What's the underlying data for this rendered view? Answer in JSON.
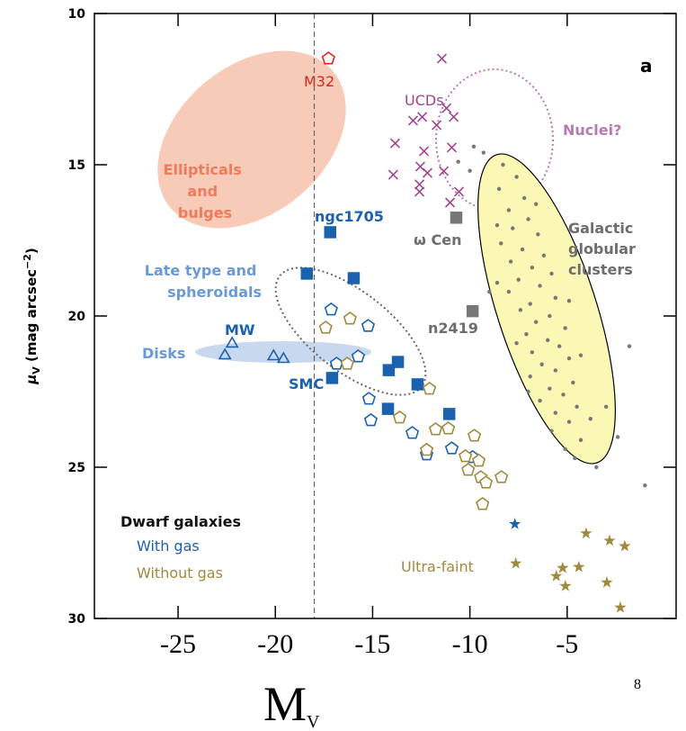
{
  "chart_data": {
    "type": "scatter",
    "xlabel": [
      "M",
      "V"
    ],
    "ylabel": [
      "μ",
      "V",
      " (mag arcsec",
      "−2",
      ")"
    ],
    "xlim": [
      -29.3,
      0.6
    ],
    "ylim": [
      10,
      30
    ],
    "y_inverted": true,
    "xticks": [
      -25,
      -20,
      -15,
      -10,
      -5
    ],
    "yticks": [
      10,
      15,
      20,
      25,
      30
    ],
    "vline": -18,
    "page_number": "8",
    "annotations": [
      "a",
      "M32",
      "UCDs",
      "Nuclei?",
      [
        "Ellipticals",
        "and",
        "bulges"
      ],
      "ngc1705",
      "ω Cen",
      [
        "Galactic",
        "globular",
        "clusters"
      ],
      [
        "Late type and",
        "spheroidals"
      ],
      "n2419",
      "MW",
      "Disks",
      "SMC",
      "Ultra-faint"
    ],
    "legend": {
      "title": "Dwarf galaxies",
      "entries": [
        {
          "name": "With gas",
          "color": "#1a62b0"
        },
        {
          "name": "Without gas",
          "color": "#a08a3e"
        }
      ]
    },
    "series": [
      {
        "marker": "dot",
        "color": "#777777",
        "x": [
          -8.3,
          -7.6,
          -8.5,
          -7.2,
          -8.0,
          -7.0,
          -7.8,
          -6.5,
          -8.4,
          -7.3,
          -6.2,
          -7.9,
          -6.8,
          -5.8,
          -7.5,
          -6.4,
          -8.0,
          -5.6,
          -6.9,
          -7.4,
          -5.9,
          -6.6,
          -5.1,
          -7.1,
          -6.0,
          -5.4,
          -6.8,
          -4.9,
          -6.3,
          -5.6,
          -6.9,
          -4.7,
          -5.9,
          -5.2,
          -6.4,
          -4.5,
          -5.6,
          -4.9,
          -5.8,
          -4.3,
          -5.1,
          -4.6,
          -6.6,
          -8.6,
          -8.6,
          -7.6,
          -7.0,
          -4.9,
          -4.3,
          -3.8,
          -9.8,
          -9.3,
          -10.0,
          -10.6,
          -3.0,
          -2.4,
          -3.5,
          -1.0,
          -1.8,
          -9.0
        ],
        "values": [
          15.0,
          15.4,
          15.8,
          16.1,
          16.5,
          16.8,
          17.1,
          17.3,
          17.6,
          17.8,
          18.0,
          18.2,
          18.4,
          18.6,
          18.8,
          19.0,
          19.2,
          19.4,
          19.6,
          19.8,
          20.0,
          20.2,
          20.4,
          20.6,
          20.8,
          21.0,
          21.2,
          21.4,
          21.6,
          21.8,
          22.0,
          22.2,
          22.4,
          22.6,
          22.8,
          23.0,
          23.2,
          23.5,
          23.8,
          24.1,
          24.4,
          24.7,
          16.3,
          17.0,
          18.9,
          20.9,
          22.5,
          19.5,
          21.3,
          23.4,
          14.4,
          14.6,
          15.2,
          14.9,
          23.0,
          24.0,
          25.0,
          25.6,
          21.0,
          19.2
        ]
      },
      {
        "marker": "cross",
        "color": "#a0458f",
        "x": [
          -11.44,
          -12.92,
          -11.71,
          -10.83,
          -11.2,
          -12.45,
          -13.84,
          -12.36,
          -10.93,
          -13.94,
          -12.55,
          -12.18,
          -12.59,
          -11.34,
          -10.56,
          -12.59,
          -11.02
        ],
        "values": [
          11.49,
          13.54,
          13.69,
          13.42,
          13.13,
          13.42,
          14.29,
          14.55,
          14.43,
          15.33,
          15.06,
          15.27,
          15.65,
          15.21,
          15.89,
          15.89,
          16.25
        ]
      },
      {
        "marker": "pentagon",
        "color": "#e2231a",
        "filled": false,
        "x": [
          -17.27
        ],
        "values": [
          11.49
        ]
      },
      {
        "marker": "square",
        "color": "#777777",
        "filled": true,
        "x": [
          -10.7,
          -9.86
        ],
        "values": [
          16.75,
          19.84
        ]
      },
      {
        "marker": "square",
        "color": "#1a62b0",
        "filled": true,
        "x": [
          -17.18,
          -18.38,
          -15.97,
          -17.08,
          -14.17,
          -13.7,
          -12.69,
          -14.21,
          -11.06
        ],
        "values": [
          17.23,
          18.6,
          18.75,
          22.05,
          21.79,
          21.52,
          22.26,
          23.07,
          23.24
        ]
      },
      {
        "marker": "pentagon",
        "color": "#1a62b0",
        "filled": false,
        "x": [
          -17.13,
          -15.23,
          -15.74,
          -16.85,
          -15.19,
          -15.09,
          -12.96,
          -12.22,
          -10.93,
          -9.86
        ],
        "values": [
          19.79,
          20.33,
          21.34,
          21.58,
          22.74,
          23.45,
          23.87,
          24.58,
          24.38,
          24.67
        ]
      },
      {
        "marker": "triangle",
        "color": "#1a62b0",
        "filled": false,
        "x": [
          -22.22,
          -22.59,
          -20.09,
          -19.58
        ],
        "values": [
          20.92,
          21.31,
          21.34,
          21.43
        ]
      },
      {
        "marker": "pentagon",
        "color": "#a08a3e",
        "filled": false,
        "x": [
          -17.41,
          -16.16,
          -16.3,
          -12.08,
          -13.61,
          -11.76,
          -11.11,
          -9.77,
          -12.22,
          -10.23,
          -9.54,
          -10.09,
          -9.44,
          -9.17,
          -8.38,
          -9.35
        ],
        "values": [
          20.39,
          20.09,
          21.58,
          22.41,
          23.36,
          23.75,
          23.72,
          23.96,
          24.43,
          24.64,
          24.79,
          25.09,
          25.33,
          25.51,
          25.33,
          26.22
        ]
      },
      {
        "marker": "star",
        "color": "#1a62b0",
        "x": [
          -7.69
        ],
        "values": [
          26.88
        ]
      },
      {
        "marker": "star",
        "color": "#a08a3e",
        "x": [
          -7.64,
          -4.03,
          -2.82,
          -2.04,
          -5.23,
          -4.4,
          -5.56,
          -5.09,
          -2.96,
          -2.27
        ],
        "values": [
          28.18,
          27.19,
          27.43,
          27.61,
          28.33,
          28.3,
          28.6,
          28.93,
          28.81,
          29.64
        ]
      }
    ]
  }
}
